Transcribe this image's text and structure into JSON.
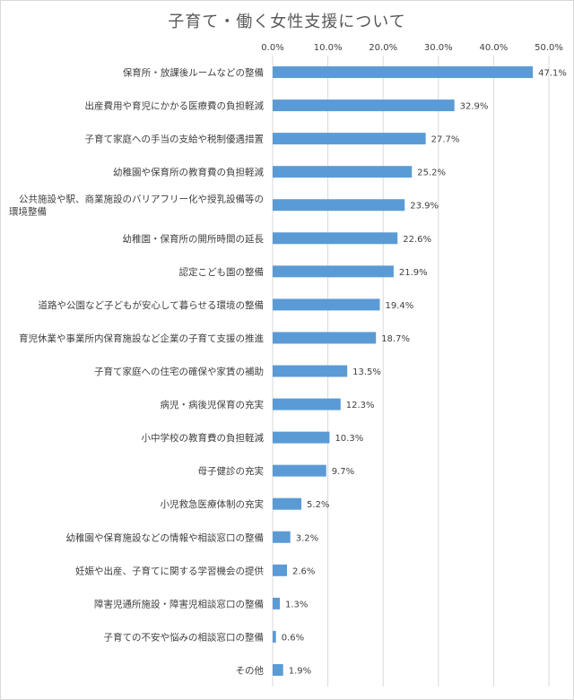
{
  "chart_data": {
    "type": "bar",
    "orientation": "horizontal",
    "title": "子育て・働く女性支援について",
    "xlim": [
      0,
      50
    ],
    "x_ticks": [
      "0.0%",
      "10.0%",
      "20.0%",
      "30.0%",
      "40.0%",
      "50.0%"
    ],
    "axis_position": "top",
    "grid": true,
    "bar_color": "#5b9bd5",
    "categories": [
      [
        "保育所・放課後ルームなどの整備"
      ],
      [
        "出産費用や育児にかかる医療費の負担軽減"
      ],
      [
        "子育て家庭への手当の支給や税制優遇措置"
      ],
      [
        "幼稚園や保育所の教育費の負担軽減"
      ],
      [
        "公共施設や駅、商業施設のバリアフリー化や授乳設備等の",
        "環境整備"
      ],
      [
        "幼稚園・保育所の開所時間の延長"
      ],
      [
        "認定こども園の整備"
      ],
      [
        "道路や公園など子どもが安心して暮らせる環境の整備"
      ],
      [
        "育児休業や事業所内保育施設など企業の子育て支援の推進"
      ],
      [
        "子育て家庭への住宅の確保や家賃の補助"
      ],
      [
        "病児・病後児保育の充実"
      ],
      [
        "小中学校の教育費の負担軽減"
      ],
      [
        "母子健診の充実"
      ],
      [
        "小児救急医療体制の充実"
      ],
      [
        "幼稚園や保育施設などの情報や相談窓口の整備"
      ],
      [
        "妊娠や出産、子育てに関する学習機会の提供"
      ],
      [
        "障害児通所施設・障害児相談窓口の整備"
      ],
      [
        "子育ての不安や悩みの相談窓口の整備"
      ],
      [
        "その他"
      ]
    ],
    "values": [
      47.1,
      32.9,
      27.7,
      25.2,
      23.9,
      22.6,
      21.9,
      19.4,
      18.7,
      13.5,
      12.3,
      10.3,
      9.7,
      5.2,
      3.2,
      2.6,
      1.3,
      0.6,
      1.9
    ],
    "value_labels": [
      "47.1%",
      "32.9%",
      "27.7%",
      "25.2%",
      "23.9%",
      "22.6%",
      "21.9%",
      "19.4%",
      "18.7%",
      "13.5%",
      "12.3%",
      "10.3%",
      "9.7%",
      "5.2%",
      "3.2%",
      "2.6%",
      "1.3%",
      "0.6%",
      "1.9%"
    ]
  }
}
